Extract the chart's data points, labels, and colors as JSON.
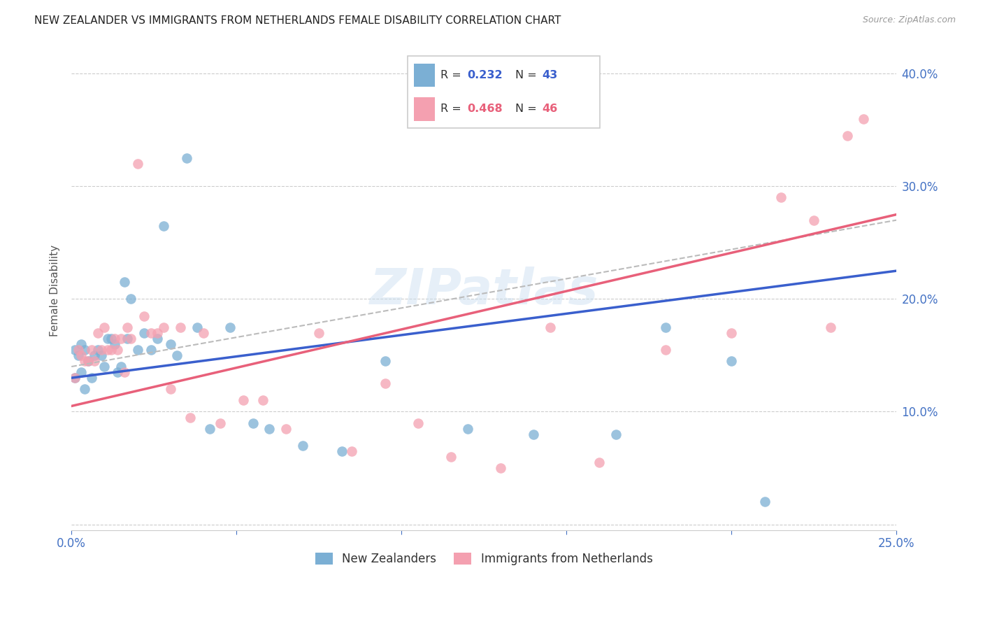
{
  "title": "NEW ZEALANDER VS IMMIGRANTS FROM NETHERLANDS FEMALE DISABILITY CORRELATION CHART",
  "source": "Source: ZipAtlas.com",
  "ylabel": "Female Disability",
  "tick_color": "#4472c4",
  "xlim": [
    0.0,
    0.25
  ],
  "ylim": [
    -0.005,
    0.42
  ],
  "r_nz": 0.232,
  "n_nz": 43,
  "r_nl": 0.468,
  "n_nl": 46,
  "nz_color": "#7bafd4",
  "nl_color": "#f4a0b0",
  "nz_line_color": "#3a5fcd",
  "nl_line_color": "#e8607a",
  "dashed_line_color": "#bbbbbb",
  "background_color": "#ffffff",
  "grid_color": "#cccccc",
  "nz_x": [
    0.001,
    0.001,
    0.002,
    0.003,
    0.003,
    0.004,
    0.004,
    0.005,
    0.006,
    0.007,
    0.008,
    0.009,
    0.01,
    0.011,
    0.012,
    0.013,
    0.014,
    0.015,
    0.016,
    0.017,
    0.018,
    0.02,
    0.022,
    0.024,
    0.026,
    0.028,
    0.03,
    0.032,
    0.035,
    0.038,
    0.042,
    0.048,
    0.055,
    0.06,
    0.07,
    0.082,
    0.095,
    0.12,
    0.14,
    0.165,
    0.18,
    0.2,
    0.21
  ],
  "nz_y": [
    0.155,
    0.13,
    0.15,
    0.16,
    0.135,
    0.12,
    0.155,
    0.145,
    0.13,
    0.15,
    0.155,
    0.15,
    0.14,
    0.165,
    0.165,
    0.16,
    0.135,
    0.14,
    0.215,
    0.165,
    0.2,
    0.155,
    0.17,
    0.155,
    0.165,
    0.265,
    0.16,
    0.15,
    0.325,
    0.175,
    0.085,
    0.175,
    0.09,
    0.085,
    0.07,
    0.065,
    0.145,
    0.085,
    0.08,
    0.08,
    0.175,
    0.145,
    0.02
  ],
  "nl_x": [
    0.001,
    0.002,
    0.003,
    0.004,
    0.005,
    0.006,
    0.007,
    0.008,
    0.009,
    0.01,
    0.011,
    0.012,
    0.013,
    0.014,
    0.015,
    0.016,
    0.017,
    0.018,
    0.02,
    0.022,
    0.024,
    0.026,
    0.028,
    0.03,
    0.033,
    0.036,
    0.04,
    0.045,
    0.052,
    0.058,
    0.065,
    0.075,
    0.085,
    0.095,
    0.105,
    0.115,
    0.13,
    0.145,
    0.16,
    0.18,
    0.2,
    0.215,
    0.225,
    0.23,
    0.235,
    0.24
  ],
  "nl_y": [
    0.13,
    0.155,
    0.15,
    0.145,
    0.145,
    0.155,
    0.145,
    0.17,
    0.155,
    0.175,
    0.155,
    0.155,
    0.165,
    0.155,
    0.165,
    0.135,
    0.175,
    0.165,
    0.32,
    0.185,
    0.17,
    0.17,
    0.175,
    0.12,
    0.175,
    0.095,
    0.17,
    0.09,
    0.11,
    0.11,
    0.085,
    0.17,
    0.065,
    0.125,
    0.09,
    0.06,
    0.05,
    0.175,
    0.055,
    0.155,
    0.17,
    0.29,
    0.27,
    0.175,
    0.345,
    0.36
  ]
}
